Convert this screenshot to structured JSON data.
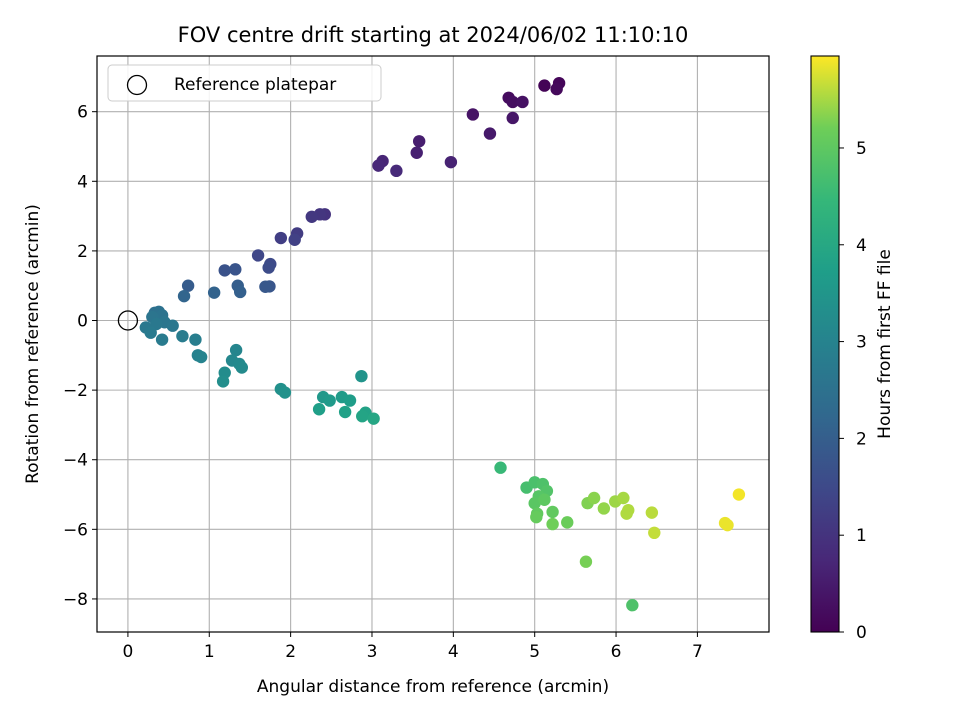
{
  "chart_data": {
    "type": "scatter",
    "title": "FOV centre drift starting at 2024/06/02 11:10:10",
    "xlabel": "Angular distance from reference (arcmin)",
    "ylabel": "Rotation from reference (arcmin)",
    "xlim": [
      -0.38,
      7.88
    ],
    "ylim": [
      -8.95,
      7.6
    ],
    "xticks": [
      "0",
      "1",
      "2",
      "3",
      "4",
      "5",
      "6",
      "7"
    ],
    "yticks": [
      "−8",
      "−6",
      "−4",
      "−2",
      "0",
      "2",
      "4",
      "6"
    ],
    "grid": true,
    "legend": {
      "position": "top-left",
      "entries": [
        "Reference platepar"
      ]
    },
    "reference_point": {
      "x": 0,
      "y": 0
    },
    "colorbar": {
      "label": "Hours from first FF file",
      "range": [
        0,
        5.95
      ],
      "ticks": [
        "0",
        "1",
        "2",
        "3",
        "4",
        "5"
      ],
      "colormap": "viridis"
    },
    "points": [
      {
        "x": 5.12,
        "y": 6.75,
        "c": 0.05
      },
      {
        "x": 5.3,
        "y": 6.82,
        "c": 0.1
      },
      {
        "x": 5.27,
        "y": 6.65,
        "c": 0.15
      },
      {
        "x": 4.68,
        "y": 6.4,
        "c": 0.2
      },
      {
        "x": 4.73,
        "y": 6.28,
        "c": 0.25
      },
      {
        "x": 4.85,
        "y": 6.28,
        "c": 0.3
      },
      {
        "x": 4.24,
        "y": 5.92,
        "c": 0.35
      },
      {
        "x": 4.73,
        "y": 5.82,
        "c": 0.4
      },
      {
        "x": 4.45,
        "y": 5.37,
        "c": 0.45
      },
      {
        "x": 3.58,
        "y": 5.15,
        "c": 0.55
      },
      {
        "x": 3.55,
        "y": 4.82,
        "c": 0.6
      },
      {
        "x": 3.97,
        "y": 4.55,
        "c": 0.65
      },
      {
        "x": 3.13,
        "y": 4.58,
        "c": 0.7
      },
      {
        "x": 3.08,
        "y": 4.45,
        "c": 0.75
      },
      {
        "x": 3.3,
        "y": 4.3,
        "c": 0.8
      },
      {
        "x": 2.42,
        "y": 3.05,
        "c": 1.0
      },
      {
        "x": 2.36,
        "y": 3.05,
        "c": 1.05
      },
      {
        "x": 2.26,
        "y": 2.98,
        "c": 1.1
      },
      {
        "x": 2.08,
        "y": 2.5,
        "c": 1.2
      },
      {
        "x": 1.88,
        "y": 2.37,
        "c": 1.25
      },
      {
        "x": 2.05,
        "y": 2.32,
        "c": 1.3
      },
      {
        "x": 1.6,
        "y": 1.87,
        "c": 1.45
      },
      {
        "x": 1.75,
        "y": 1.62,
        "c": 1.5
      },
      {
        "x": 1.73,
        "y": 1.52,
        "c": 1.55
      },
      {
        "x": 1.19,
        "y": 1.44,
        "c": 1.7
      },
      {
        "x": 1.32,
        "y": 1.47,
        "c": 1.75
      },
      {
        "x": 1.74,
        "y": 0.98,
        "c": 1.8
      },
      {
        "x": 1.69,
        "y": 0.97,
        "c": 1.85
      },
      {
        "x": 0.74,
        "y": 1.0,
        "c": 1.95
      },
      {
        "x": 1.35,
        "y": 1.0,
        "c": 2.0
      },
      {
        "x": 1.38,
        "y": 0.82,
        "c": 2.05
      },
      {
        "x": 1.06,
        "y": 0.8,
        "c": 2.1
      },
      {
        "x": 0.69,
        "y": 0.7,
        "c": 2.15
      },
      {
        "x": 0.33,
        "y": 0.22,
        "c": 2.45
      },
      {
        "x": 0.38,
        "y": 0.25,
        "c": 2.5
      },
      {
        "x": 0.42,
        "y": 0.15,
        "c": 2.55
      },
      {
        "x": 0.3,
        "y": 0.1,
        "c": 2.6
      },
      {
        "x": 0.45,
        "y": -0.05,
        "c": 2.62
      },
      {
        "x": 0.55,
        "y": -0.15,
        "c": 2.65
      },
      {
        "x": 0.35,
        "y": -0.1,
        "c": 2.68
      },
      {
        "x": 0.22,
        "y": -0.2,
        "c": 2.7
      },
      {
        "x": 0.28,
        "y": -0.35,
        "c": 2.75
      },
      {
        "x": 0.42,
        "y": -0.55,
        "c": 2.78
      },
      {
        "x": 0.67,
        "y": -0.45,
        "c": 2.8
      },
      {
        "x": 0.83,
        "y": -0.55,
        "c": 2.85
      },
      {
        "x": 0.86,
        "y": -1.0,
        "c": 2.95
      },
      {
        "x": 0.9,
        "y": -1.05,
        "c": 3.0
      },
      {
        "x": 1.33,
        "y": -0.85,
        "c": 3.05
      },
      {
        "x": 1.28,
        "y": -1.15,
        "c": 3.1
      },
      {
        "x": 1.37,
        "y": -1.25,
        "c": 3.15
      },
      {
        "x": 1.4,
        "y": -1.35,
        "c": 3.2
      },
      {
        "x": 1.19,
        "y": -1.5,
        "c": 3.25
      },
      {
        "x": 1.17,
        "y": -1.75,
        "c": 3.3
      },
      {
        "x": 1.88,
        "y": -1.97,
        "c": 3.35
      },
      {
        "x": 1.93,
        "y": -2.07,
        "c": 3.4
      },
      {
        "x": 2.87,
        "y": -1.6,
        "c": 3.45
      },
      {
        "x": 2.4,
        "y": -2.2,
        "c": 3.55
      },
      {
        "x": 2.48,
        "y": -2.3,
        "c": 3.6
      },
      {
        "x": 2.63,
        "y": -2.2,
        "c": 3.65
      },
      {
        "x": 2.73,
        "y": -2.3,
        "c": 3.7
      },
      {
        "x": 2.35,
        "y": -2.55,
        "c": 3.75
      },
      {
        "x": 2.67,
        "y": -2.63,
        "c": 3.8
      },
      {
        "x": 2.92,
        "y": -2.65,
        "c": 3.85
      },
      {
        "x": 2.88,
        "y": -2.75,
        "c": 3.9
      },
      {
        "x": 3.02,
        "y": -2.82,
        "c": 3.95
      },
      {
        "x": 4.58,
        "y": -4.23,
        "c": 4.5
      },
      {
        "x": 4.9,
        "y": -4.8,
        "c": 4.7
      },
      {
        "x": 5.0,
        "y": -4.65,
        "c": 4.75
      },
      {
        "x": 5.1,
        "y": -4.7,
        "c": 4.8
      },
      {
        "x": 5.15,
        "y": -4.9,
        "c": 4.85
      },
      {
        "x": 5.05,
        "y": -5.05,
        "c": 4.9
      },
      {
        "x": 5.0,
        "y": -5.25,
        "c": 4.95
      },
      {
        "x": 5.12,
        "y": -5.15,
        "c": 5.0
      },
      {
        "x": 5.22,
        "y": -5.5,
        "c": 5.05
      },
      {
        "x": 5.03,
        "y": -5.55,
        "c": 5.05
      },
      {
        "x": 5.02,
        "y": -5.65,
        "c": 5.1
      },
      {
        "x": 5.4,
        "y": -5.8,
        "c": 5.15
      },
      {
        "x": 5.22,
        "y": -5.85,
        "c": 5.2
      },
      {
        "x": 5.63,
        "y": -6.93,
        "c": 5.25
      },
      {
        "x": 6.2,
        "y": -8.18,
        "c": 4.8
      },
      {
        "x": 5.65,
        "y": -5.25,
        "c": 5.3
      },
      {
        "x": 5.73,
        "y": -5.1,
        "c": 5.35
      },
      {
        "x": 5.85,
        "y": -5.4,
        "c": 5.4
      },
      {
        "x": 5.99,
        "y": -5.2,
        "c": 5.45
      },
      {
        "x": 6.09,
        "y": -5.1,
        "c": 5.5
      },
      {
        "x": 6.13,
        "y": -5.55,
        "c": 5.55
      },
      {
        "x": 6.15,
        "y": -5.45,
        "c": 5.55
      },
      {
        "x": 6.44,
        "y": -5.52,
        "c": 5.6
      },
      {
        "x": 6.47,
        "y": -6.1,
        "c": 5.65
      },
      {
        "x": 7.34,
        "y": -5.82,
        "c": 5.85
      },
      {
        "x": 7.37,
        "y": -5.88,
        "c": 5.85
      },
      {
        "x": 7.51,
        "y": -5.0,
        "c": 5.9
      }
    ]
  }
}
